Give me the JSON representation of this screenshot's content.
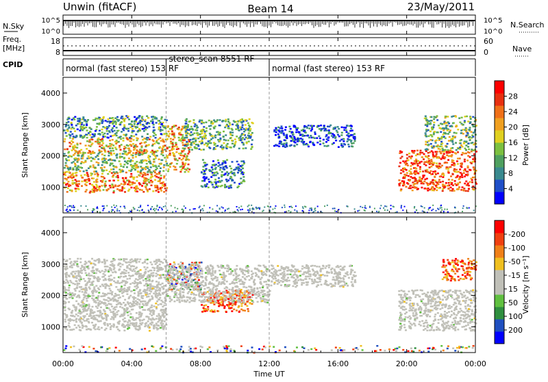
{
  "header": {
    "left_title": "Unwin (fitACF)",
    "center_title": "Beam 14",
    "date": "23/May/2011"
  },
  "aux_panels": {
    "nsky_label": "N.Sky",
    "nsearch_label": "N.Search",
    "nsky_ticks": [
      "10^5",
      "10^0"
    ],
    "nsky_ticks_right": [
      "10^5",
      "10^0"
    ],
    "freq_label_1": "Freq.",
    "freq_label_2": "[MHz]",
    "freq_ticks": [
      "18",
      "8"
    ],
    "nave_label": "Nave",
    "nave_ticks": [
      "60",
      "0"
    ],
    "cpid_label": "CPID"
  },
  "cpid_segments": [
    {
      "start_hour": 0.0,
      "end_hour": 6.0,
      "label": "normal (fast stereo) 153 RF"
    },
    {
      "start_hour": 6.0,
      "end_hour": 12.0,
      "label": "stereo_scan 8551 RF"
    },
    {
      "start_hour": 12.0,
      "end_hour": 24.0,
      "label": "normal (fast stereo) 153 RF"
    }
  ],
  "chart_data": [
    {
      "type": "heatmap",
      "name": "Power",
      "xlabel": "",
      "ylabel": "Slant Range [km]",
      "xlim_hours": [
        0,
        24
      ],
      "ylim_km": [
        180,
        4500
      ],
      "yticks": [
        1000,
        2000,
        3000,
        4000
      ],
      "colorbar": {
        "label": "Power [dB]",
        "ticks": [
          "4",
          "8",
          "12",
          "16",
          "20",
          "24",
          "28"
        ],
        "colors": [
          "#0000ff",
          "#1f4fc8",
          "#3a8a8f",
          "#4fa060",
          "#7cc040",
          "#e0d020",
          "#f0a020",
          "#f07018",
          "#e83010",
          "#ff0000"
        ]
      },
      "echo_regions": [
        {
          "start_hour": 0.0,
          "end_hour": 6.0,
          "min_km": 850,
          "max_km": 1500,
          "level": 0.72
        },
        {
          "start_hour": 0.0,
          "end_hour": 6.0,
          "min_km": 1500,
          "max_km": 2100,
          "level": 0.45
        },
        {
          "start_hour": 0.0,
          "end_hour": 6.0,
          "min_km": 2100,
          "max_km": 2600,
          "level": 0.6
        },
        {
          "start_hour": 0.0,
          "end_hour": 6.0,
          "min_km": 2600,
          "max_km": 3300,
          "level": 0.3
        },
        {
          "start_hour": 6.0,
          "end_hour": 7.3,
          "min_km": 1500,
          "max_km": 3000,
          "level": 0.65
        },
        {
          "start_hour": 7.0,
          "end_hour": 11.0,
          "min_km": 2200,
          "max_km": 3200,
          "level": 0.35
        },
        {
          "start_hour": 8.0,
          "end_hour": 10.5,
          "min_km": 1000,
          "max_km": 1900,
          "level": 0.25
        },
        {
          "start_hour": 12.2,
          "end_hour": 17.0,
          "min_km": 2300,
          "max_km": 3000,
          "level": 0.15
        },
        {
          "start_hour": 19.5,
          "end_hour": 24.0,
          "min_km": 900,
          "max_km": 2200,
          "level": 0.8
        },
        {
          "start_hour": 21.0,
          "end_hour": 24.0,
          "min_km": 2200,
          "max_km": 3300,
          "level": 0.4
        }
      ]
    },
    {
      "type": "heatmap",
      "name": "Velocity",
      "xlabel": "Time UT",
      "ylabel": "Slant Range [km]",
      "xlim_hours": [
        0,
        24
      ],
      "ylim_km": [
        180,
        4500
      ],
      "yticks": [
        1000,
        2000,
        3000,
        4000
      ],
      "xticks": [
        "00:00",
        "04:00",
        "08:00",
        "12:00",
        "16:00",
        "20:00",
        "00:00"
      ],
      "colorbar": {
        "label": "Velocity [m s⁻¹]",
        "ticks": [
          "200",
          "100",
          "50",
          "15",
          "-15",
          "-50",
          "-100",
          "-200"
        ],
        "colors": [
          "#0000ff",
          "#2050c0",
          "#2f8f3f",
          "#60c040",
          "#c0c0b8",
          "#c0c0b8",
          "#f0c020",
          "#f08018",
          "#f04010",
          "#ff0000"
        ]
      },
      "echo_regions": [
        {
          "start_hour": 0.0,
          "end_hour": 6.0,
          "min_km": 900,
          "max_km": 2000,
          "level": "ground"
        },
        {
          "start_hour": 0.0,
          "end_hour": 6.0,
          "min_km": 2000,
          "max_km": 3200,
          "level": "ground"
        },
        {
          "start_hour": 6.0,
          "end_hour": 8.0,
          "min_km": 2200,
          "max_km": 3100,
          "level": "mixed"
        },
        {
          "start_hour": 8.0,
          "end_hour": 11.0,
          "min_km": 1500,
          "max_km": 2200,
          "level": "negative"
        },
        {
          "start_hour": 6.0,
          "end_hour": 12.0,
          "min_km": 1800,
          "max_km": 3000,
          "level": "ground"
        },
        {
          "start_hour": 12.0,
          "end_hour": 17.0,
          "min_km": 2300,
          "max_km": 3000,
          "level": "ground"
        },
        {
          "start_hour": 19.5,
          "end_hour": 24.0,
          "min_km": 900,
          "max_km": 2200,
          "level": "ground"
        },
        {
          "start_hour": 22.0,
          "end_hour": 24.0,
          "min_km": 2500,
          "max_km": 3200,
          "level": "negative"
        },
        {
          "start_hour": 0.0,
          "end_hour": 24.0,
          "min_km": 200,
          "max_km": 420,
          "level": "near-range"
        }
      ]
    }
  ]
}
